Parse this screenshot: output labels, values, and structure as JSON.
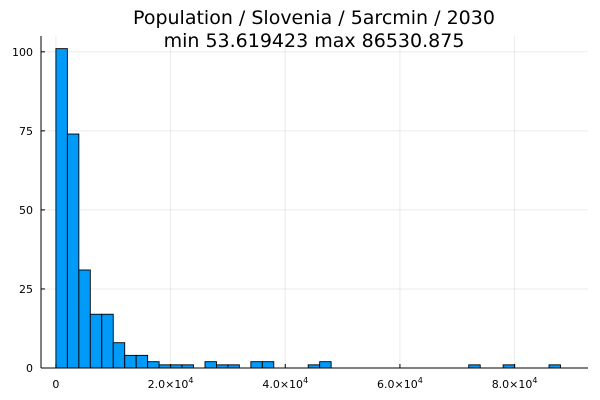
{
  "chart_data": {
    "type": "bar",
    "title": "Population / Slovenia / 5arcmin / 2030",
    "subtitle": "min 53.619423  max 86530.875",
    "xlabel": "",
    "ylabel": "",
    "bin_width": 2000,
    "xlim": [
      -2600,
      92800
    ],
    "ylim": [
      0,
      105
    ],
    "grid": true,
    "legend": "none",
    "bar_color": "#009AF9",
    "x_ticks": [
      {
        "value": 0,
        "mantissa": "0",
        "exponent": ""
      },
      {
        "value": 20000,
        "mantissa": "2.0×10",
        "exponent": "4"
      },
      {
        "value": 40000,
        "mantissa": "4.0×10",
        "exponent": "4"
      },
      {
        "value": 60000,
        "mantissa": "6.0×10",
        "exponent": "4"
      },
      {
        "value": 80000,
        "mantissa": "8.0×10",
        "exponent": "4"
      }
    ],
    "y_ticks": [
      0,
      25,
      50,
      75,
      100
    ],
    "bins": [
      {
        "start": 0,
        "count": 101
      },
      {
        "start": 2000,
        "count": 74
      },
      {
        "start": 4000,
        "count": 31
      },
      {
        "start": 6000,
        "count": 17
      },
      {
        "start": 8000,
        "count": 17
      },
      {
        "start": 10000,
        "count": 8
      },
      {
        "start": 12000,
        "count": 4
      },
      {
        "start": 14000,
        "count": 4
      },
      {
        "start": 16000,
        "count": 2
      },
      {
        "start": 18000,
        "count": 1
      },
      {
        "start": 20000,
        "count": 1
      },
      {
        "start": 22000,
        "count": 1
      },
      {
        "start": 26000,
        "count": 2
      },
      {
        "start": 28000,
        "count": 1
      },
      {
        "start": 30000,
        "count": 1
      },
      {
        "start": 34000,
        "count": 2
      },
      {
        "start": 36000,
        "count": 2
      },
      {
        "start": 44000,
        "count": 1
      },
      {
        "start": 46000,
        "count": 2
      },
      {
        "start": 72000,
        "count": 1
      },
      {
        "start": 78000,
        "count": 1
      },
      {
        "start": 86000,
        "count": 1
      }
    ]
  }
}
